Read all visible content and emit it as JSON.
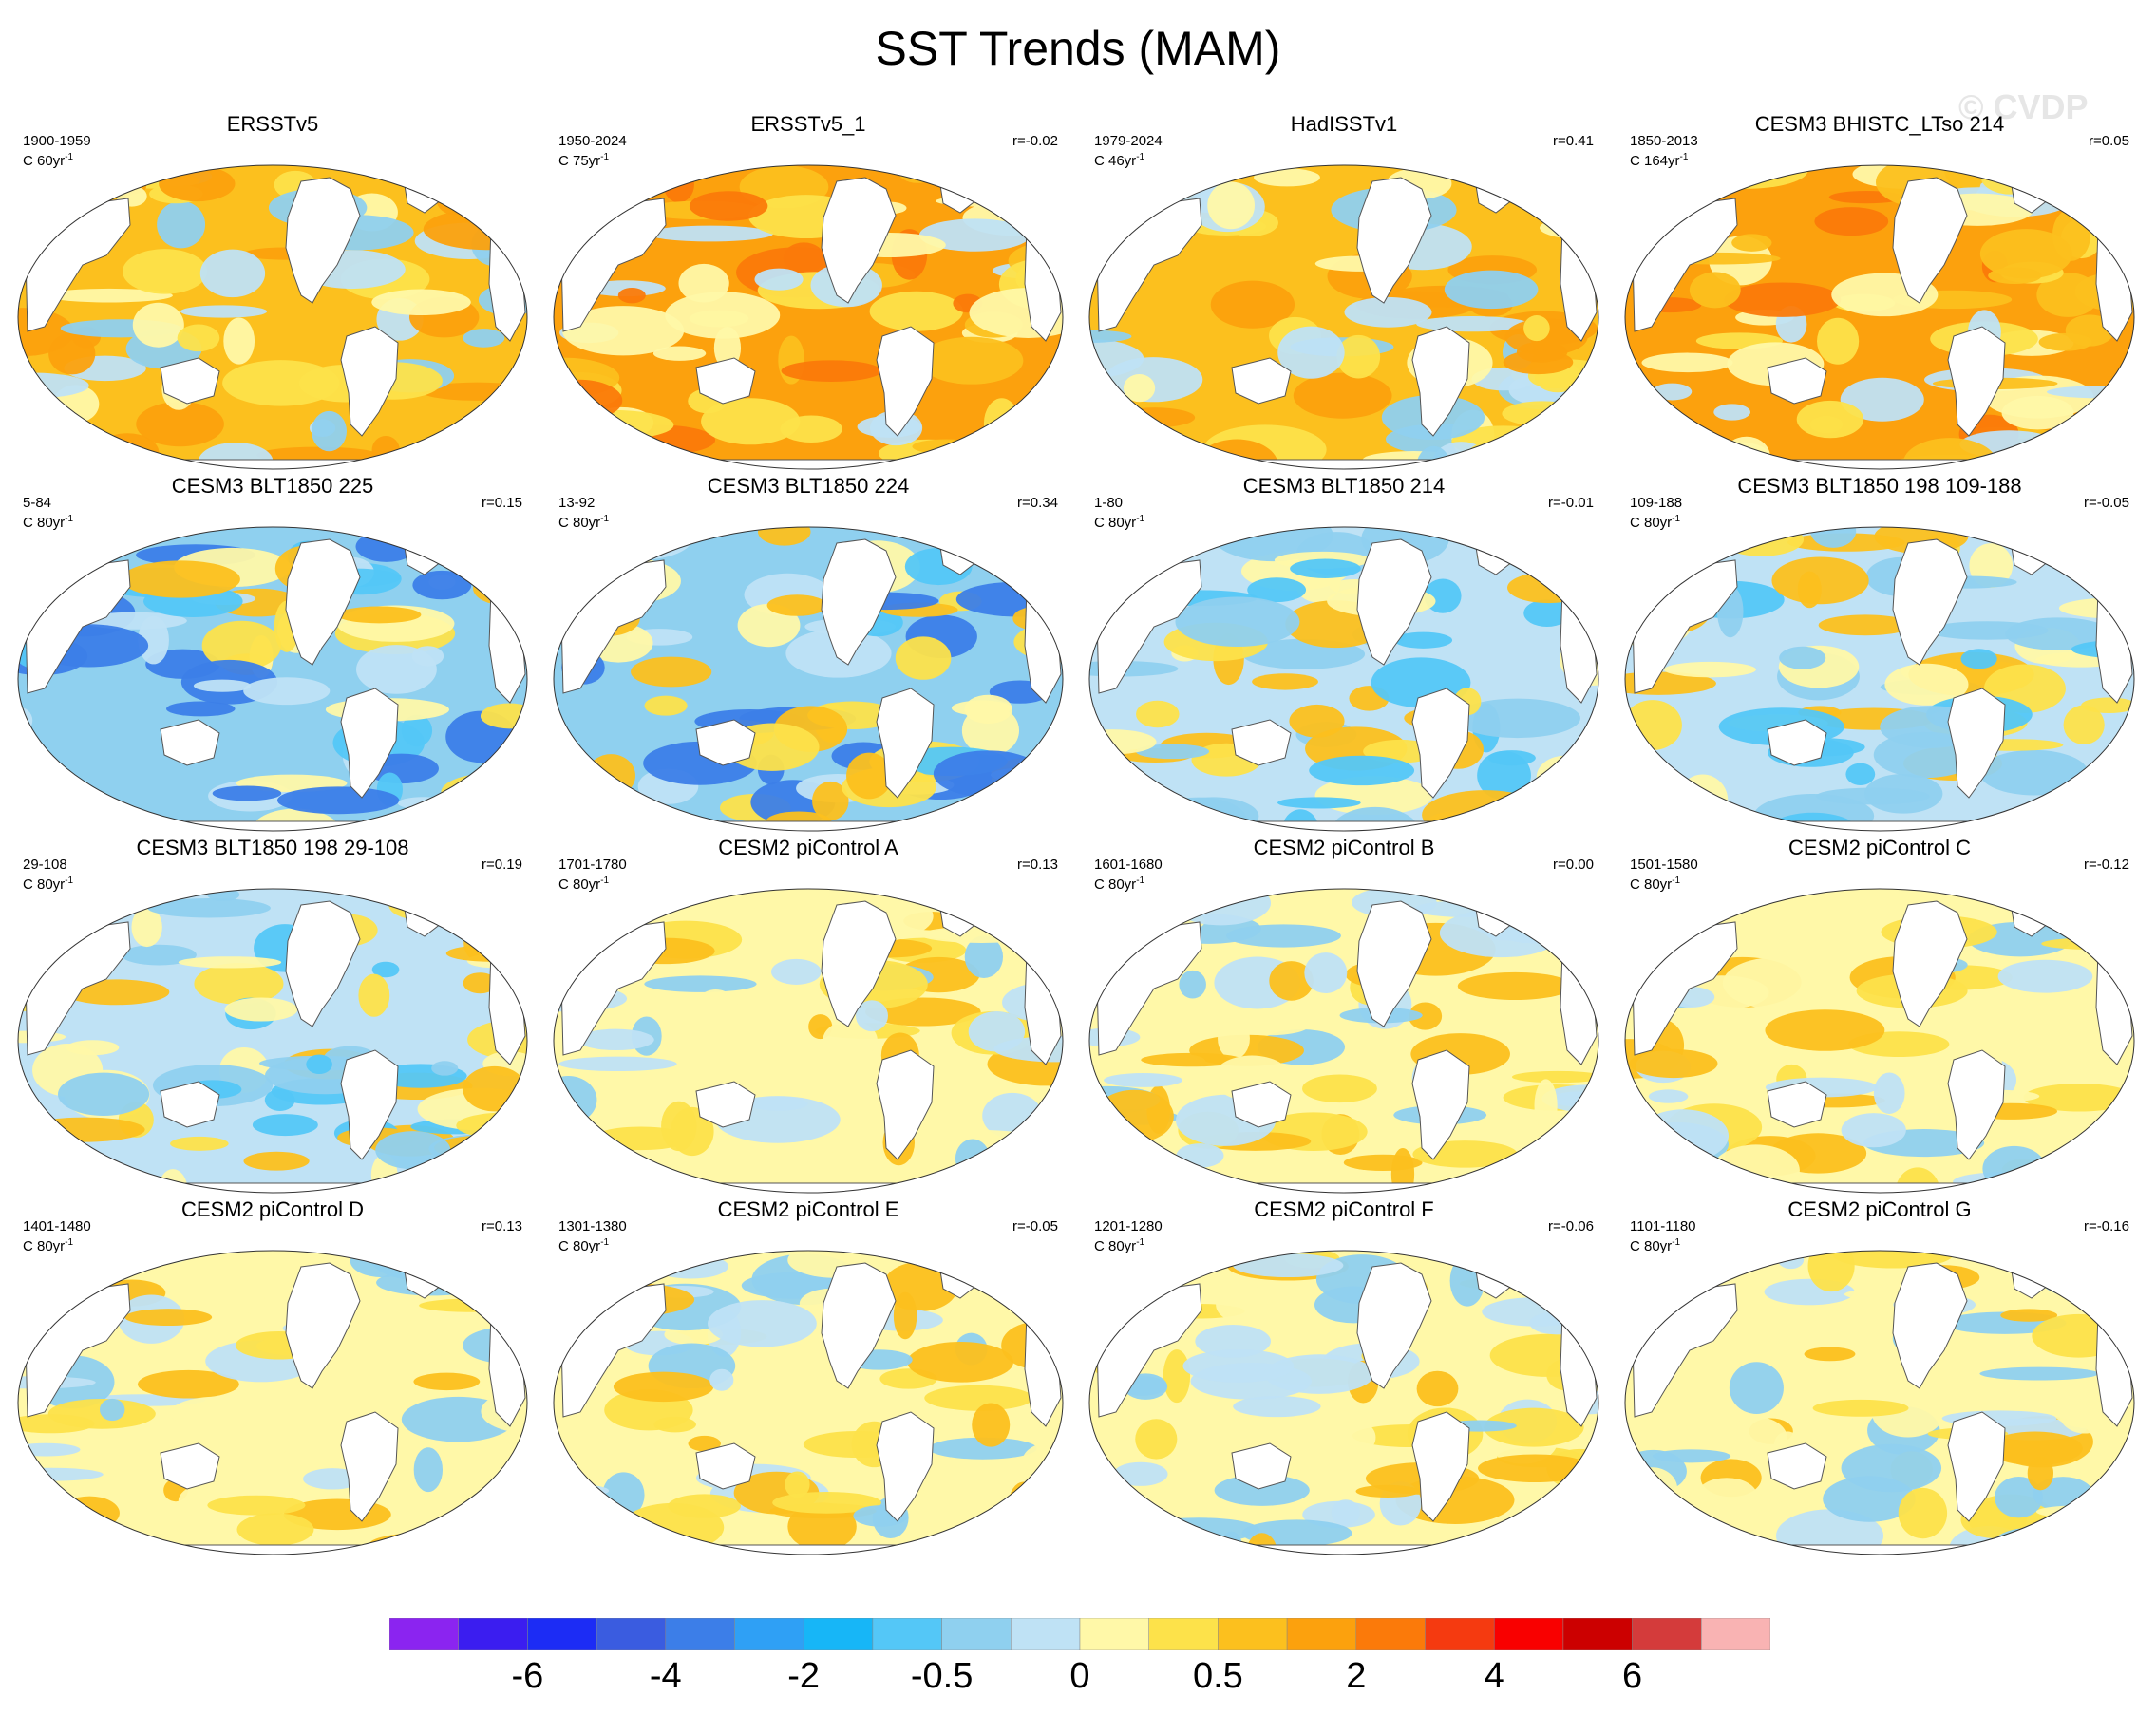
{
  "title": "SST Trends (MAM)",
  "watermark": "© CVDP",
  "panels": [
    {
      "title": "ERSSTv5",
      "period": "1900-1959",
      "trend_prefix": "C 60yr",
      "trend_exp": "-1",
      "r": "",
      "palette": "warm"
    },
    {
      "title": "ERSSTv5_1",
      "period": "1950-2024",
      "trend_prefix": "C 75yr",
      "trend_exp": "-1",
      "r": "r=-0.02",
      "palette": "warmstrong"
    },
    {
      "title": "HadISSTv1",
      "period": "1979-2024",
      "trend_prefix": "C 46yr",
      "trend_exp": "-1",
      "r": "r=0.41",
      "palette": "warm"
    },
    {
      "title": "CESM3 BHISTC_LTso 214",
      "period": "1850-2013",
      "trend_prefix": "C 164yr",
      "trend_exp": "-1",
      "r": "r=0.05",
      "palette": "warmstrong"
    },
    {
      "title": "CESM3 BLT1850 225",
      "period": "5-84",
      "trend_prefix": "C 80yr",
      "trend_exp": "-1",
      "r": "r=0.15",
      "palette": "cool"
    },
    {
      "title": "CESM3 BLT1850 224",
      "period": "13-92",
      "trend_prefix": "C 80yr",
      "trend_exp": "-1",
      "r": "r=0.34",
      "palette": "cool"
    },
    {
      "title": "CESM3 BLT1850 214",
      "period": "1-80",
      "trend_prefix": "C 80yr",
      "trend_exp": "-1",
      "r": "r=-0.01",
      "palette": "mixed"
    },
    {
      "title": "CESM3 BLT1850 198 109-188",
      "period": "109-188",
      "trend_prefix": "C 80yr",
      "trend_exp": "-1",
      "r": "r=-0.05",
      "palette": "mixed"
    },
    {
      "title": "CESM3 BLT1850 198 29-108",
      "period": "29-108",
      "trend_prefix": "C 80yr",
      "trend_exp": "-1",
      "r": "r=0.19",
      "palette": "mixed"
    },
    {
      "title": "CESM2 piControl A",
      "period": "1701-1780",
      "trend_prefix": "C 80yr",
      "trend_exp": "-1",
      "r": "r=0.13",
      "palette": "mild"
    },
    {
      "title": "CESM2 piControl B",
      "period": "1601-1680",
      "trend_prefix": "C 80yr",
      "trend_exp": "-1",
      "r": "r=0.00",
      "palette": "mild"
    },
    {
      "title": "CESM2 piControl C",
      "period": "1501-1580",
      "trend_prefix": "C 80yr",
      "trend_exp": "-1",
      "r": "r=-0.12",
      "palette": "mild"
    },
    {
      "title": "CESM2 piControl D",
      "period": "1401-1480",
      "trend_prefix": "C 80yr",
      "trend_exp": "-1",
      "r": "r=0.13",
      "palette": "mild"
    },
    {
      "title": "CESM2 piControl E",
      "period": "1301-1380",
      "trend_prefix": "C 80yr",
      "trend_exp": "-1",
      "r": "r=-0.05",
      "palette": "mild"
    },
    {
      "title": "CESM2 piControl F",
      "period": "1201-1280",
      "trend_prefix": "C 80yr",
      "trend_exp": "-1",
      "r": "r=-0.06",
      "palette": "mild"
    },
    {
      "title": "CESM2 piControl G",
      "period": "1101-1180",
      "trend_prefix": "C 80yr",
      "trend_exp": "-1",
      "r": "r=-0.16",
      "palette": "mild"
    }
  ],
  "colorbar": {
    "colors": [
      "#8b24f0",
      "#3b1df0",
      "#1c2cf5",
      "#3a5ce0",
      "#3c7ee8",
      "#2fa0f5",
      "#17b6f7",
      "#54c7f7",
      "#8fd0ef",
      "#bfe2f5",
      "#fff8a8",
      "#fde24a",
      "#fcc01e",
      "#fca10d",
      "#fb7a0a",
      "#f53a10",
      "#f90000",
      "#cc0000",
      "#d43b3b",
      "#f9b3b3"
    ],
    "labels": [
      "-6",
      "-4",
      "-2",
      "-0.5",
      "0",
      "0.5",
      "2",
      "4",
      "6"
    ],
    "label_boundary_index": [
      2,
      4,
      6,
      8,
      10,
      12,
      14,
      16,
      18
    ]
  },
  "palettes": {
    "warm": [
      "#fcc01e",
      "#fde24a",
      "#fca10d",
      "#fff8a8",
      "#bfe2f5",
      "#8fd0ef"
    ],
    "warmstrong": [
      "#fca10d",
      "#fcc01e",
      "#fde24a",
      "#fb7a0a",
      "#fff8a8",
      "#bfe2f5"
    ],
    "cool": [
      "#8fd0ef",
      "#bfe2f5",
      "#54c7f7",
      "#fff8a8",
      "#fde24a",
      "#fcc01e",
      "#3c7ee8"
    ],
    "mixed": [
      "#bfe2f5",
      "#fff8a8",
      "#8fd0ef",
      "#fde24a",
      "#fcc01e",
      "#54c7f7"
    ],
    "mild": [
      "#fff8a8",
      "#bfe2f5",
      "#fde24a",
      "#8fd0ef",
      "#fff8a8",
      "#fcc01e"
    ]
  }
}
